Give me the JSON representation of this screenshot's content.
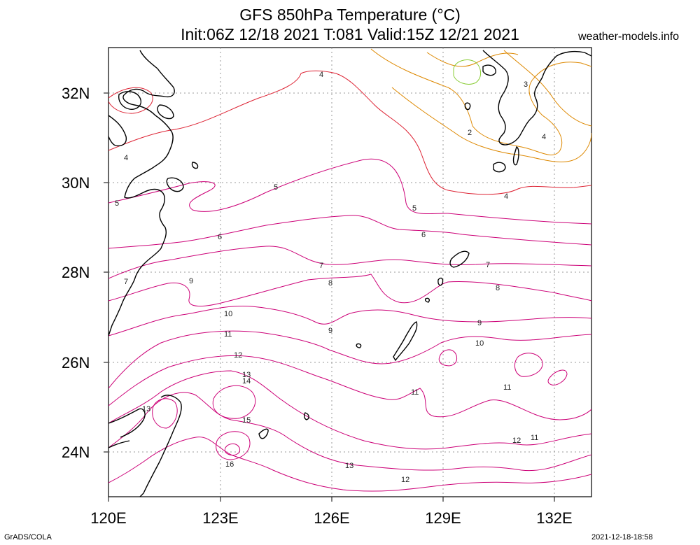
{
  "title_line1": "GFS 850hPa Temperature (°C)",
  "title_line2": "Init:06Z 12/18 2021 T:081 Valid:15Z 12/21 2021",
  "site": "weather-models.info",
  "footer_left": "GrADS/COLA",
  "footer_right": "2021-12-18-18:58",
  "lat_labels": [
    "32N",
    "30N",
    "28N",
    "26N",
    "24N"
  ],
  "lon_labels": [
    "120E",
    "123E",
    "126E",
    "129E",
    "132E"
  ],
  "contour_labels": [
    "4",
    "4",
    "5",
    "5",
    "5",
    "6",
    "6",
    "7",
    "7",
    "7",
    "8",
    "8",
    "9",
    "9",
    "9",
    "10",
    "10",
    "11",
    "11",
    "11",
    "11",
    "12",
    "12",
    "12",
    "13",
    "13",
    "13",
    "14",
    "15",
    "16",
    "3",
    "2",
    "4",
    "4"
  ],
  "colors": {
    "warm": "#cc0077",
    "mid": "#cc3344",
    "cool": "#dd8800",
    "cold": "#88cc33",
    "coast": "#000000",
    "grid": "#999999"
  }
}
